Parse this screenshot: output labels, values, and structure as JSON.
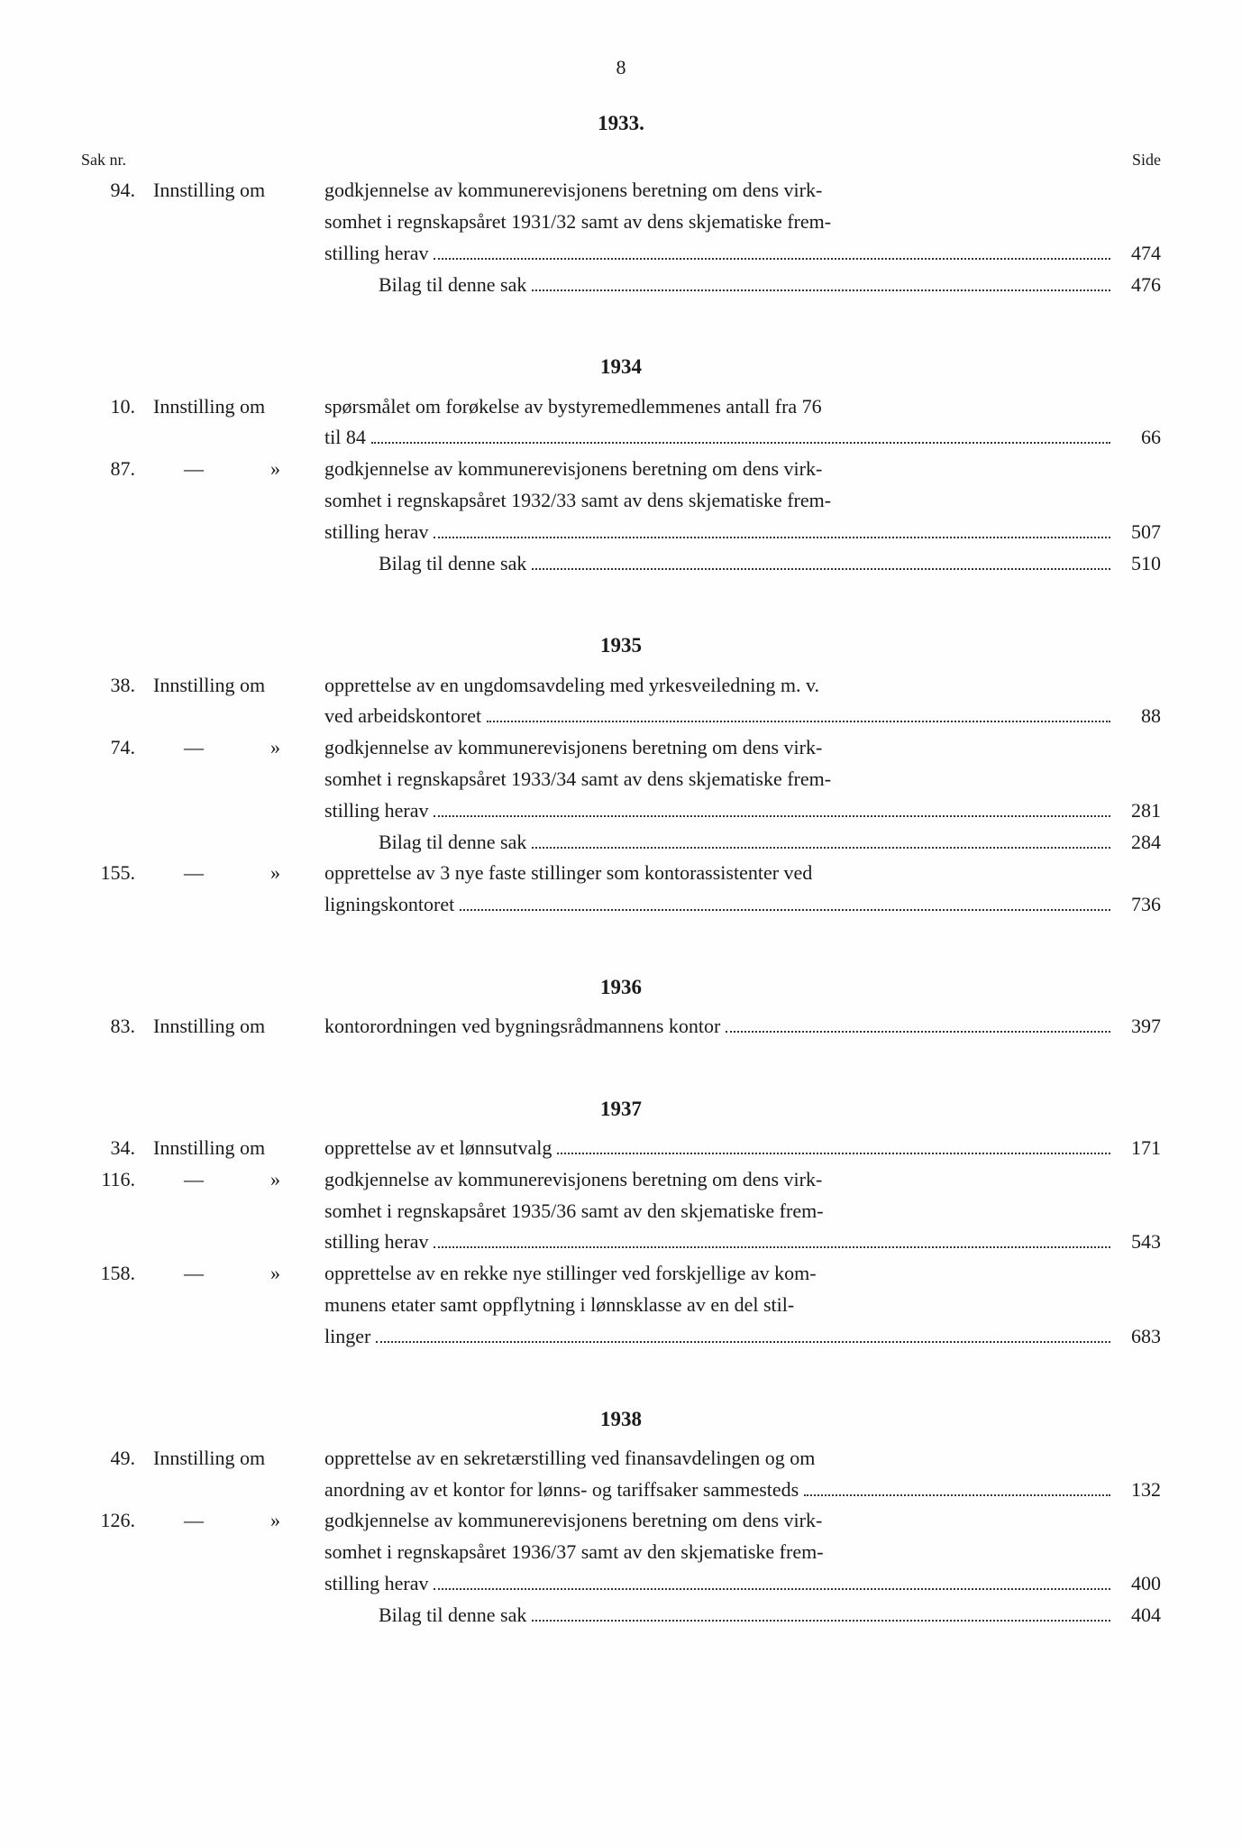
{
  "page_number": "8",
  "headers": {
    "sak_nr": "Sak nr.",
    "side": "Side"
  },
  "sections": [
    {
      "year": "1933.",
      "entries": [
        {
          "sak": "94.",
          "type": "Innstilling om",
          "lines": [
            {
              "text": "godkjennelse av kommunerevisjonens beretning om dens virk-",
              "page": ""
            },
            {
              "text": "somhet i regnskapsåret 1931/32 samt av dens skjematiske frem-",
              "page": ""
            },
            {
              "text": "stilling herav",
              "page": "474",
              "dotted": true
            }
          ],
          "bilag": {
            "text": "Bilag til denne sak",
            "page": "476"
          }
        }
      ]
    },
    {
      "year": "1934",
      "entries": [
        {
          "sak": "10.",
          "type": "Innstilling om",
          "lines": [
            {
              "text": "spørsmålet om forøkelse av bystyremedlemmenes antall fra 76",
              "page": ""
            },
            {
              "text": "til 84",
              "page": "66",
              "dotted": true
            }
          ]
        },
        {
          "sak": "87.",
          "type": "—",
          "quote": "»",
          "lines": [
            {
              "text": "godkjennelse av kommunerevisjonens beretning om dens virk-",
              "page": ""
            },
            {
              "text": "somhet i regnskapsåret 1932/33 samt av dens skjematiske frem-",
              "page": ""
            },
            {
              "text": "stilling herav",
              "page": "507",
              "dotted": true
            }
          ],
          "bilag": {
            "text": "Bilag til denne sak",
            "page": "510"
          }
        }
      ]
    },
    {
      "year": "1935",
      "entries": [
        {
          "sak": "38.",
          "type": "Innstilling om",
          "lines": [
            {
              "text": "opprettelse av en ungdomsavdeling med yrkesveiledning m. v.",
              "page": ""
            },
            {
              "text": "ved arbeidskontoret",
              "page": "88",
              "dotted": true
            }
          ]
        },
        {
          "sak": "74.",
          "type": "—",
          "quote": "»",
          "lines": [
            {
              "text": "godkjennelse av kommunerevisjonens beretning om dens virk-",
              "page": ""
            },
            {
              "text": "somhet i regnskapsåret 1933/34 samt av dens skjematiske frem-",
              "page": ""
            },
            {
              "text": "stilling herav",
              "page": "281",
              "dotted": true
            }
          ],
          "bilag": {
            "text": "Bilag til denne sak",
            "page": "284"
          }
        },
        {
          "sak": "155.",
          "type": "—",
          "quote": "»",
          "lines": [
            {
              "text": "opprettelse av 3 nye faste stillinger som kontorassistenter ved",
              "page": ""
            },
            {
              "text": "ligningskontoret",
              "page": "736",
              "dotted": true
            }
          ]
        }
      ]
    },
    {
      "year": "1936",
      "entries": [
        {
          "sak": "83.",
          "type": "Innstilling om",
          "lines": [
            {
              "text": "kontorordningen ved bygningsrådmannens kontor",
              "page": "397",
              "dotted": true
            }
          ]
        }
      ]
    },
    {
      "year": "1937",
      "entries": [
        {
          "sak": "34.",
          "type": "Innstilling om",
          "lines": [
            {
              "text": "opprettelse av et lønnsutvalg",
              "page": "171",
              "dotted": true
            }
          ]
        },
        {
          "sak": "116.",
          "type": "—",
          "quote": "»",
          "lines": [
            {
              "text": "godkjennelse av kommunerevisjonens beretning om dens virk-",
              "page": ""
            },
            {
              "text": "somhet i regnskapsåret 1935/36 samt av den skjematiske frem-",
              "page": ""
            },
            {
              "text": "stilling herav",
              "page": "543",
              "dotted": true
            }
          ]
        },
        {
          "sak": "158.",
          "type": "—",
          "quote": "»",
          "lines": [
            {
              "text": "opprettelse av en rekke nye stillinger ved forskjellige av kom-",
              "page": ""
            },
            {
              "text": "munens etater samt oppflytning i lønnsklasse av en del stil-",
              "page": ""
            },
            {
              "text": "linger",
              "page": "683",
              "dotted": true
            }
          ]
        }
      ]
    },
    {
      "year": "1938",
      "entries": [
        {
          "sak": "49.",
          "type": "Innstilling om",
          "lines": [
            {
              "text": "opprettelse av en sekretærstilling ved finansavdelingen og om",
              "page": ""
            },
            {
              "text": "anordning av et kontor for lønns- og tariffsaker sammesteds",
              "page": "132",
              "dotted": true
            }
          ]
        },
        {
          "sak": "126.",
          "type": "—",
          "quote": "»",
          "lines": [
            {
              "text": "godkjennelse av kommunerevisjonens beretning om dens virk-",
              "page": ""
            },
            {
              "text": "somhet i regnskapsåret 1936/37 samt av den skjematiske frem-",
              "page": ""
            },
            {
              "text": "stilling herav",
              "page": "400",
              "dotted": true
            }
          ],
          "bilag": {
            "text": "Bilag til denne sak",
            "page": "404"
          }
        }
      ]
    }
  ]
}
